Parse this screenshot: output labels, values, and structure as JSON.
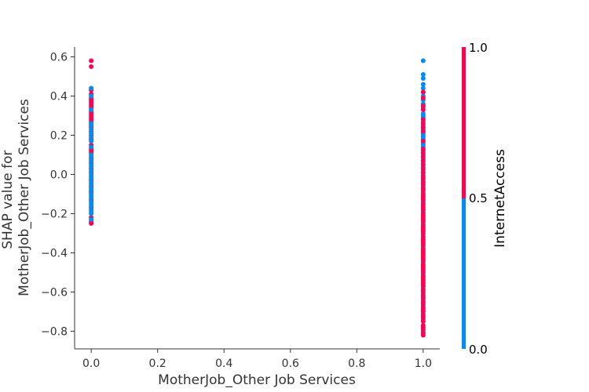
{
  "chart_data": {
    "type": "scatter",
    "xlabel": "MotherJob_Other Job Services",
    "ylabel_lines": [
      "SHAP value for",
      "MotherJob_Other Job Services"
    ],
    "xlim": [
      -0.05,
      1.05
    ],
    "ylim": [
      -0.89,
      0.65
    ],
    "xticks": [
      0.0,
      0.2,
      0.4,
      0.6,
      0.8,
      1.0
    ],
    "xtick_labels": [
      "0.0",
      "0.2",
      "0.4",
      "0.6",
      "0.8",
      "1.0"
    ],
    "yticks": [
      0.6,
      0.4,
      0.2,
      0.0,
      -0.2,
      -0.4,
      -0.6,
      -0.8
    ],
    "ytick_labels": [
      "0.6",
      "0.4",
      "0.2",
      "0.0",
      "−0.2",
      "−0.4",
      "−0.6",
      "−0.8"
    ],
    "grid": false,
    "colorbar": {
      "title": "InternetAccess",
      "min": 0.0,
      "max": 1.0,
      "tick_labels": [
        "1.0",
        "0.5",
        "0.0"
      ],
      "tick_values": [
        1.0,
        0.5,
        0.0
      ],
      "colors": {
        "low": "#008bfb",
        "high": "#ff0052"
      }
    },
    "series": [
      {
        "x": 0.0,
        "color_value": 1,
        "y": [
          0.58,
          0.55,
          0.43,
          0.41,
          0.39,
          0.38,
          0.37,
          0.36,
          0.35,
          0.34,
          0.33,
          0.32,
          0.31,
          0.3,
          0.29,
          0.28,
          0.27,
          0.26,
          0.25,
          0.24,
          0.22,
          0.2,
          0.18,
          0.15,
          0.13,
          0.12,
          0.11,
          0.08,
          0.06,
          0.03,
          0.01,
          -0.03,
          -0.06,
          -0.09,
          -0.13,
          -0.17,
          -0.22,
          -0.24,
          -0.25
        ]
      },
      {
        "x": 0.0,
        "color_value": 0,
        "y": [
          0.44,
          0.4,
          0.33,
          0.26,
          0.25,
          0.23,
          0.21,
          0.19,
          0.17,
          0.14,
          0.1,
          0.09,
          0.07,
          0.05,
          0.04,
          0.02,
          0.0,
          -0.01,
          -0.02,
          -0.04,
          -0.05,
          -0.07,
          -0.08,
          -0.1,
          -0.11,
          -0.12,
          -0.14,
          -0.15,
          -0.16,
          -0.18,
          -0.19,
          -0.2,
          -0.23
        ]
      },
      {
        "x": 1.0,
        "color_value": 0,
        "y": [
          0.58,
          0.51,
          0.49,
          0.46,
          0.44,
          0.42,
          0.4,
          0.38,
          0.36,
          0.34,
          0.31,
          0.3,
          0.29,
          0.27,
          0.25,
          0.24,
          0.23,
          0.22,
          0.21,
          0.2,
          0.19,
          0.18,
          0.17,
          0.16,
          0.15,
          0.14,
          0.12,
          0.1,
          0.08,
          0.06,
          0.04,
          0.02,
          0.0,
          -0.03,
          -0.06,
          -0.09,
          -0.14,
          -0.19,
          -0.25,
          -0.31,
          -0.37,
          -0.45,
          -0.51,
          -0.58,
          -0.61,
          -0.64,
          -0.67,
          -0.71,
          -0.74,
          -0.8
        ]
      },
      {
        "x": 1.0,
        "color_value": 1,
        "y": [
          0.42,
          0.39,
          0.35,
          0.33,
          0.28,
          0.26,
          0.24,
          0.22,
          0.17,
          0.13,
          0.11,
          0.09,
          0.07,
          0.05,
          0.03,
          0.01,
          -0.01,
          -0.02,
          -0.04,
          -0.05,
          -0.07,
          -0.08,
          -0.1,
          -0.11,
          -0.12,
          -0.13,
          -0.15,
          -0.16,
          -0.17,
          -0.18,
          -0.2,
          -0.21,
          -0.22,
          -0.23,
          -0.24,
          -0.26,
          -0.27,
          -0.28,
          -0.29,
          -0.3,
          -0.32,
          -0.33,
          -0.34,
          -0.35,
          -0.36,
          -0.38,
          -0.39,
          -0.4,
          -0.41,
          -0.42,
          -0.43,
          -0.44,
          -0.46,
          -0.47,
          -0.48,
          -0.49,
          -0.5,
          -0.52,
          -0.53,
          -0.54,
          -0.55,
          -0.56,
          -0.57,
          -0.59,
          -0.6,
          -0.62,
          -0.63,
          -0.65,
          -0.66,
          -0.68,
          -0.69,
          -0.7,
          -0.72,
          -0.73,
          -0.75,
          -0.77,
          -0.78,
          -0.79,
          -0.81,
          -0.82
        ]
      }
    ]
  }
}
